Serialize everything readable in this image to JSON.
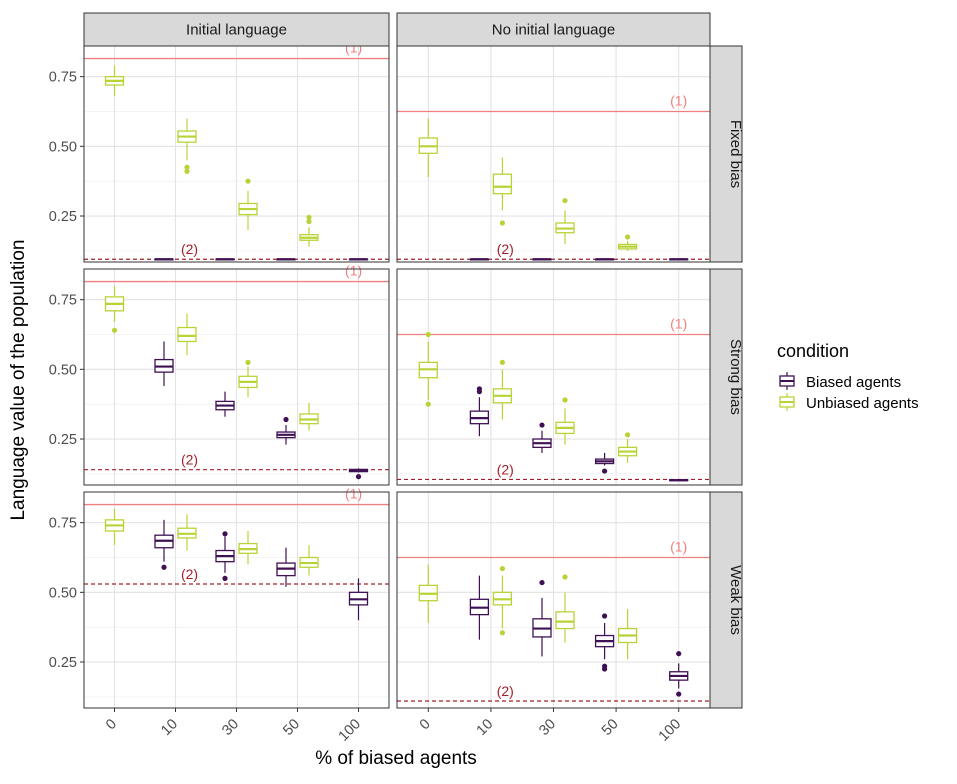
{
  "chart_data": {
    "type": "boxplot-facet-grid",
    "xlabel": "% of biased agents",
    "ylabel": "Language value of the population",
    "categories": [
      "0",
      "10",
      "30",
      "50",
      "100"
    ],
    "ylim": [
      0.085,
      0.86
    ],
    "yticks": [
      0.25,
      0.5,
      0.75
    ],
    "ytick_labels": [
      "0.25",
      "0.50",
      "0.75"
    ],
    "columns": [
      "Initial language",
      "No initial language"
    ],
    "rows": [
      "Fixed bias",
      "Strong bias",
      "Weak bias"
    ],
    "legend": {
      "title": "condition",
      "position": "right",
      "items": [
        {
          "name": "Biased agents",
          "color": "#3f1054"
        },
        {
          "name": "Unbiased agents",
          "color": "#b7d437"
        }
      ]
    },
    "reference_color": "#f08080",
    "threshold_color": "#a3202a",
    "panels": [
      {
        "row": "Fixed bias",
        "col": "Initial language",
        "ref1": 0.815,
        "ref1_label": "(1)",
        "ref1_label_x": 3.92,
        "ref2": 0.095,
        "ref2_label": "(2)",
        "ref2_label_x": 1.23,
        "series": {
          "Biased agents": [
            null,
            {
              "min": 0.095,
              "q1": 0.095,
              "median": 0.095,
              "q3": 0.095,
              "max": 0.095,
              "outliers": []
            },
            {
              "min": 0.095,
              "q1": 0.095,
              "median": 0.095,
              "q3": 0.095,
              "max": 0.095,
              "outliers": []
            },
            {
              "min": 0.095,
              "q1": 0.095,
              "median": 0.095,
              "q3": 0.095,
              "max": 0.095,
              "outliers": []
            },
            {
              "min": 0.095,
              "q1": 0.095,
              "median": 0.095,
              "q3": 0.095,
              "max": 0.095,
              "outliers": []
            }
          ],
          "Unbiased agents": [
            {
              "min": 0.68,
              "q1": 0.72,
              "median": 0.735,
              "q3": 0.75,
              "max": 0.79,
              "outliers": []
            },
            {
              "min": 0.45,
              "q1": 0.515,
              "median": 0.535,
              "q3": 0.555,
              "max": 0.6,
              "outliers": [
                0.425,
                0.41
              ]
            },
            {
              "min": 0.2,
              "q1": 0.255,
              "median": 0.275,
              "q3": 0.295,
              "max": 0.34,
              "outliers": [
                0.375
              ]
            },
            {
              "min": 0.14,
              "q1": 0.163,
              "median": 0.172,
              "q3": 0.183,
              "max": 0.21,
              "outliers": [
                0.23,
                0.245
              ]
            },
            null
          ]
        }
      },
      {
        "row": "Fixed bias",
        "col": "No initial language",
        "ref1": 0.625,
        "ref1_label": "(1)",
        "ref1_label_x": 4.0,
        "ref2": 0.095,
        "ref2_label": "(2)",
        "ref2_label_x": 1.23,
        "series": {
          "Biased agents": [
            null,
            {
              "min": 0.095,
              "q1": 0.095,
              "median": 0.095,
              "q3": 0.095,
              "max": 0.095,
              "outliers": []
            },
            {
              "min": 0.095,
              "q1": 0.095,
              "median": 0.095,
              "q3": 0.095,
              "max": 0.095,
              "outliers": []
            },
            {
              "min": 0.095,
              "q1": 0.095,
              "median": 0.095,
              "q3": 0.095,
              "max": 0.095,
              "outliers": []
            },
            {
              "min": 0.095,
              "q1": 0.095,
              "median": 0.095,
              "q3": 0.095,
              "max": 0.095,
              "outliers": []
            }
          ],
          "Unbiased agents": [
            {
              "min": 0.39,
              "q1": 0.475,
              "median": 0.5,
              "q3": 0.53,
              "max": 0.6,
              "outliers": []
            },
            {
              "min": 0.27,
              "q1": 0.33,
              "median": 0.355,
              "q3": 0.4,
              "max": 0.46,
              "outliers": [
                0.225
              ]
            },
            {
              "min": 0.15,
              "q1": 0.19,
              "median": 0.205,
              "q3": 0.225,
              "max": 0.27,
              "outliers": [
                0.305
              ]
            },
            {
              "min": 0.125,
              "q1": 0.132,
              "median": 0.14,
              "q3": 0.148,
              "max": 0.16,
              "outliers": [
                0.175
              ]
            },
            null
          ]
        }
      },
      {
        "row": "Strong bias",
        "col": "Initial language",
        "ref1": 0.815,
        "ref1_label": "(1)",
        "ref1_label_x": 3.92,
        "ref2": 0.14,
        "ref2_label": "(2)",
        "ref2_label_x": 1.23,
        "series": {
          "Biased agents": [
            null,
            {
              "min": 0.44,
              "q1": 0.49,
              "median": 0.51,
              "q3": 0.535,
              "max": 0.6,
              "outliers": []
            },
            {
              "min": 0.33,
              "q1": 0.355,
              "median": 0.37,
              "q3": 0.385,
              "max": 0.42,
              "outliers": []
            },
            {
              "min": 0.23,
              "q1": 0.255,
              "median": 0.265,
              "q3": 0.275,
              "max": 0.3,
              "outliers": [
                0.32
              ]
            },
            {
              "min": 0.13,
              "q1": 0.133,
              "median": 0.137,
              "q3": 0.141,
              "max": 0.145,
              "outliers": [
                0.115
              ]
            }
          ],
          "Unbiased agents": [
            {
              "min": 0.67,
              "q1": 0.71,
              "median": 0.735,
              "q3": 0.76,
              "max": 0.8,
              "outliers": [
                0.64
              ]
            },
            {
              "min": 0.55,
              "q1": 0.6,
              "median": 0.62,
              "q3": 0.65,
              "max": 0.7,
              "outliers": []
            },
            {
              "min": 0.4,
              "q1": 0.435,
              "median": 0.455,
              "q3": 0.475,
              "max": 0.51,
              "outliers": [
                0.525
              ]
            },
            {
              "min": 0.28,
              "q1": 0.305,
              "median": 0.32,
              "q3": 0.34,
              "max": 0.38,
              "outliers": []
            },
            null
          ]
        }
      },
      {
        "row": "Strong bias",
        "col": "No initial language",
        "ref1": 0.625,
        "ref1_label": "(1)",
        "ref1_label_x": 4.0,
        "ref2": 0.105,
        "ref2_label": "(2)",
        "ref2_label_x": 1.23,
        "series": {
          "Biased agents": [
            null,
            {
              "min": 0.26,
              "q1": 0.305,
              "median": 0.325,
              "q3": 0.35,
              "max": 0.4,
              "outliers": [
                0.42,
                0.43
              ]
            },
            {
              "min": 0.2,
              "q1": 0.22,
              "median": 0.235,
              "q3": 0.25,
              "max": 0.28,
              "outliers": [
                0.3
              ]
            },
            {
              "min": 0.155,
              "q1": 0.162,
              "median": 0.17,
              "q3": 0.178,
              "max": 0.2,
              "outliers": [
                0.135
              ]
            },
            {
              "min": 0.1,
              "q1": 0.101,
              "median": 0.102,
              "q3": 0.104,
              "max": 0.106,
              "outliers": []
            }
          ],
          "Unbiased agents": [
            {
              "min": 0.39,
              "q1": 0.47,
              "median": 0.5,
              "q3": 0.525,
              "max": 0.6,
              "outliers": [
                0.375,
                0.625
              ]
            },
            {
              "min": 0.32,
              "q1": 0.38,
              "median": 0.405,
              "q3": 0.43,
              "max": 0.5,
              "outliers": [
                0.525
              ]
            },
            {
              "min": 0.23,
              "q1": 0.27,
              "median": 0.29,
              "q3": 0.31,
              "max": 0.36,
              "outliers": [
                0.39
              ]
            },
            {
              "min": 0.165,
              "q1": 0.19,
              "median": 0.205,
              "q3": 0.22,
              "max": 0.25,
              "outliers": [
                0.265
              ]
            },
            null
          ]
        }
      },
      {
        "row": "Weak bias",
        "col": "Initial language",
        "ref1": 0.815,
        "ref1_label": "(1)",
        "ref1_label_x": 3.92,
        "ref2": 0.53,
        "ref2_label": "(2)",
        "ref2_label_x": 1.23,
        "series": {
          "Biased agents": [
            null,
            {
              "min": 0.61,
              "q1": 0.66,
              "median": 0.685,
              "q3": 0.705,
              "max": 0.76,
              "outliers": [
                0.59
              ]
            },
            {
              "min": 0.57,
              "q1": 0.61,
              "median": 0.63,
              "q3": 0.65,
              "max": 0.7,
              "outliers": [
                0.55,
                0.71
              ]
            },
            {
              "min": 0.52,
              "q1": 0.56,
              "median": 0.585,
              "q3": 0.605,
              "max": 0.66,
              "outliers": []
            },
            {
              "min": 0.4,
              "q1": 0.455,
              "median": 0.475,
              "q3": 0.5,
              "max": 0.55,
              "outliers": []
            }
          ],
          "Unbiased agents": [
            {
              "min": 0.67,
              "q1": 0.72,
              "median": 0.74,
              "q3": 0.76,
              "max": 0.8,
              "outliers": []
            },
            {
              "min": 0.65,
              "q1": 0.695,
              "median": 0.71,
              "q3": 0.73,
              "max": 0.78,
              "outliers": []
            },
            {
              "min": 0.6,
              "q1": 0.64,
              "median": 0.655,
              "q3": 0.675,
              "max": 0.72,
              "outliers": []
            },
            {
              "min": 0.56,
              "q1": 0.59,
              "median": 0.605,
              "q3": 0.625,
              "max": 0.67,
              "outliers": []
            },
            null
          ]
        }
      },
      {
        "row": "Weak bias",
        "col": "No initial language",
        "ref1": 0.625,
        "ref1_label": "(1)",
        "ref1_label_x": 4.0,
        "ref2": 0.11,
        "ref2_label": "(2)",
        "ref2_label_x": 1.23,
        "series": {
          "Biased agents": [
            null,
            {
              "min": 0.33,
              "q1": 0.42,
              "median": 0.445,
              "q3": 0.475,
              "max": 0.56,
              "outliers": []
            },
            {
              "min": 0.27,
              "q1": 0.34,
              "median": 0.37,
              "q3": 0.405,
              "max": 0.48,
              "outliers": [
                0.535
              ]
            },
            {
              "min": 0.26,
              "q1": 0.305,
              "median": 0.325,
              "q3": 0.345,
              "max": 0.39,
              "outliers": [
                0.415,
                0.235,
                0.225
              ]
            },
            {
              "min": 0.155,
              "q1": 0.185,
              "median": 0.2,
              "q3": 0.215,
              "max": 0.245,
              "outliers": [
                0.135,
                0.28
              ]
            }
          ],
          "Unbiased agents": [
            {
              "min": 0.39,
              "q1": 0.47,
              "median": 0.495,
              "q3": 0.525,
              "max": 0.6,
              "outliers": []
            },
            {
              "min": 0.37,
              "q1": 0.455,
              "median": 0.475,
              "q3": 0.5,
              "max": 0.56,
              "outliers": [
                0.355,
                0.585
              ]
            },
            {
              "min": 0.32,
              "q1": 0.37,
              "median": 0.395,
              "q3": 0.43,
              "max": 0.5,
              "outliers": [
                0.555
              ]
            },
            {
              "min": 0.26,
              "q1": 0.32,
              "median": 0.345,
              "q3": 0.37,
              "max": 0.44,
              "outliers": []
            },
            null
          ]
        }
      }
    ]
  }
}
